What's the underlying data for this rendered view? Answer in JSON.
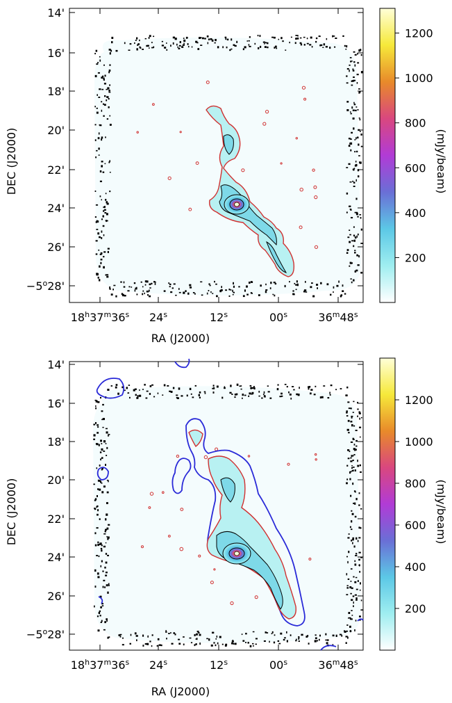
{
  "chart_data": [
    {
      "type": "heatmap",
      "description_role": "top-panel",
      "xlabel": "RA (J2000)",
      "ylabel": "DEC (J2000)",
      "x_ticks": [
        "18h37m36s",
        "24s",
        "12s",
        "00s",
        "36m48s"
      ],
      "x_tick_parts": [
        [
          {
            "t": "18"
          },
          {
            "t": "h",
            "sup": true
          },
          {
            "t": "37"
          },
          {
            "t": "m",
            "sup": true
          },
          {
            "t": "36"
          },
          {
            "t": "s",
            "sup": true
          }
        ],
        [
          {
            "t": "24"
          },
          {
            "t": "s",
            "sup": true
          }
        ],
        [
          {
            "t": "12"
          },
          {
            "t": "s",
            "sup": true
          }
        ],
        [
          {
            "t": "00"
          },
          {
            "t": "s",
            "sup": true
          }
        ],
        [
          {
            "t": "36"
          },
          {
            "t": "m",
            "sup": true
          },
          {
            "t": "48"
          },
          {
            "t": "s",
            "sup": true
          }
        ]
      ],
      "y_ticks": [
        "14'",
        "16'",
        "18'",
        "20'",
        "22'",
        "24'",
        "26'",
        "−5°28'"
      ],
      "y_tick_parts": [
        [
          {
            "t": "14'"
          }
        ],
        [
          {
            "t": "16'"
          }
        ],
        [
          {
            "t": "18'"
          }
        ],
        [
          {
            "t": "20'"
          }
        ],
        [
          {
            "t": "22'"
          }
        ],
        [
          {
            "t": "24'"
          }
        ],
        [
          {
            "t": "26'"
          }
        ],
        [
          {
            "t": "−5"
          },
          {
            "t": "o",
            "sup": true
          },
          {
            "t": "28'"
          }
        ]
      ],
      "colorbar": {
        "label": "(mJy/beam)",
        "ticks": [
          200,
          400,
          600,
          800,
          1000,
          1200
        ],
        "range": [
          0,
          1310
        ],
        "colors": [
          "#ffffff",
          "#9feef0",
          "#5cc8e6",
          "#6a6fd6",
          "#b13bd6",
          "#d9477f",
          "#e88a2a",
          "#f6e93a",
          "#ffffd8"
        ]
      },
      "contours": {
        "low_level": "#d03030",
        "high_levels": "#000000"
      }
    },
    {
      "type": "heatmap",
      "description_role": "bottom-panel",
      "xlabel": "RA (J2000)",
      "ylabel": "DEC (J2000)",
      "x_ticks": [
        "18h37m36s",
        "24s",
        "12s",
        "00s",
        "36m48s"
      ],
      "x_tick_parts": [
        [
          {
            "t": "18"
          },
          {
            "t": "h",
            "sup": true
          },
          {
            "t": "37"
          },
          {
            "t": "m",
            "sup": true
          },
          {
            "t": "36"
          },
          {
            "t": "s",
            "sup": true
          }
        ],
        [
          {
            "t": "24"
          },
          {
            "t": "s",
            "sup": true
          }
        ],
        [
          {
            "t": "12"
          },
          {
            "t": "s",
            "sup": true
          }
        ],
        [
          {
            "t": "00"
          },
          {
            "t": "s",
            "sup": true
          }
        ],
        [
          {
            "t": "36"
          },
          {
            "t": "m",
            "sup": true
          },
          {
            "t": "48"
          },
          {
            "t": "s",
            "sup": true
          }
        ]
      ],
      "y_ticks": [
        "14'",
        "16'",
        "18'",
        "20'",
        "22'",
        "24'",
        "26'",
        "−5°28'"
      ],
      "y_tick_parts": [
        [
          {
            "t": "14'"
          }
        ],
        [
          {
            "t": "16'"
          }
        ],
        [
          {
            "t": "18'"
          }
        ],
        [
          {
            "t": "20'"
          }
        ],
        [
          {
            "t": "22'"
          }
        ],
        [
          {
            "t": "24'"
          }
        ],
        [
          {
            "t": "26'"
          }
        ],
        [
          {
            "t": "−5"
          },
          {
            "t": "o",
            "sup": true
          },
          {
            "t": "28'"
          }
        ]
      ],
      "colorbar": {
        "label": "(mJy/beam)",
        "ticks": [
          200,
          400,
          600,
          800,
          1000,
          1200
        ],
        "range": [
          0,
          1400
        ],
        "colors": [
          "#ffffff",
          "#9feef0",
          "#5cc8e6",
          "#6a6fd6",
          "#b13bd6",
          "#d9477f",
          "#e88a2a",
          "#f6e93a",
          "#ffffd8"
        ]
      },
      "contours": {
        "low_level": "#d03030",
        "high_levels": "#000000",
        "overlay": "#2a2ad8"
      }
    }
  ]
}
